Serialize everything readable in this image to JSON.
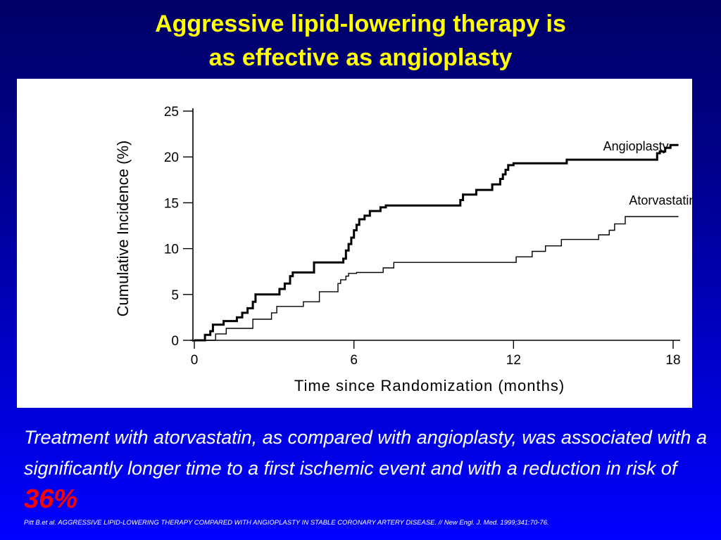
{
  "slide": {
    "title_line1": "Aggressive lipid-lowering therapy is",
    "title_line2": "as effective as angioplasty",
    "body_text": "Treatment with atorvastatin, as compared with angioplasty, was associated with a significantly longer time to a first ischemic event and with a reduction in risk of",
    "highlight": "36%",
    "citation": "Pitt B.et al. AGGRESSIVE LIPID-LOWERING THERAPY COMPARED WITH ANGIOPLASTY IN STABLE CORONARY ARTERY DISEASE. // New Engl. J. Med. 1999;341:70-76.",
    "colors": {
      "background_top": "#000066",
      "background_bottom": "#0000ff",
      "title": "#ffff00",
      "body_text": "#ffffff",
      "highlight": "#ff0000",
      "chart_background": "#ffffff",
      "chart_ink": "#000000"
    }
  },
  "chart_data": {
    "type": "line",
    "xlabel": "Time since Randomization (months)",
    "ylabel": "Cumulative Incidence (%)",
    "xlim": [
      0,
      18
    ],
    "ylim": [
      0,
      25
    ],
    "xticks": [
      0,
      6,
      12,
      18
    ],
    "yticks": [
      0,
      5,
      10,
      15,
      20,
      25
    ],
    "grid": false,
    "step": true,
    "series": [
      {
        "name": "Angioplasty",
        "x": [
          0,
          0.4,
          0.6,
          0.7,
          1.1,
          1.6,
          1.8,
          2.0,
          2.2,
          2.3,
          3.2,
          3.4,
          3.6,
          3.7,
          4.5,
          5.6,
          5.7,
          5.8,
          5.9,
          6.0,
          6.1,
          6.2,
          6.4,
          6.6,
          7.0,
          7.2,
          10.0,
          10.1,
          10.6,
          11.2,
          11.5,
          11.6,
          11.7,
          11.8,
          12.0,
          14.0,
          17.4,
          17.5,
          17.7,
          17.9,
          18.2
        ],
        "y": [
          0,
          0.6,
          1.0,
          1.7,
          2.1,
          2.5,
          3.0,
          3.5,
          4.2,
          5.0,
          5.6,
          6.2,
          7.0,
          7.4,
          8.5,
          8.9,
          9.8,
          10.5,
          11.2,
          12.0,
          12.6,
          13.2,
          13.6,
          14.1,
          14.5,
          14.7,
          15.3,
          15.9,
          16.4,
          17.0,
          17.6,
          18.1,
          18.6,
          19.1,
          19.3,
          19.7,
          20.4,
          20.6,
          21.0,
          21.3,
          21.3
        ],
        "label": "Angioplasty"
      },
      {
        "name": "Atorvastatin",
        "x": [
          0,
          0.8,
          1.2,
          2.2,
          2.9,
          3.1,
          4.1,
          4.7,
          5.4,
          5.5,
          5.7,
          5.8,
          6.1,
          7.1,
          7.5,
          12.1,
          12.7,
          13.2,
          13.8,
          15.2,
          15.6,
          15.8,
          16.2,
          18.2
        ],
        "y": [
          0,
          0.7,
          1.3,
          2.3,
          3.0,
          3.7,
          4.2,
          5.3,
          6.2,
          6.6,
          7.0,
          7.3,
          7.4,
          7.9,
          8.5,
          9.1,
          9.7,
          10.3,
          11.0,
          11.5,
          12.0,
          12.7,
          13.5,
          13.5
        ],
        "label": "Atorvastatin"
      }
    ]
  }
}
